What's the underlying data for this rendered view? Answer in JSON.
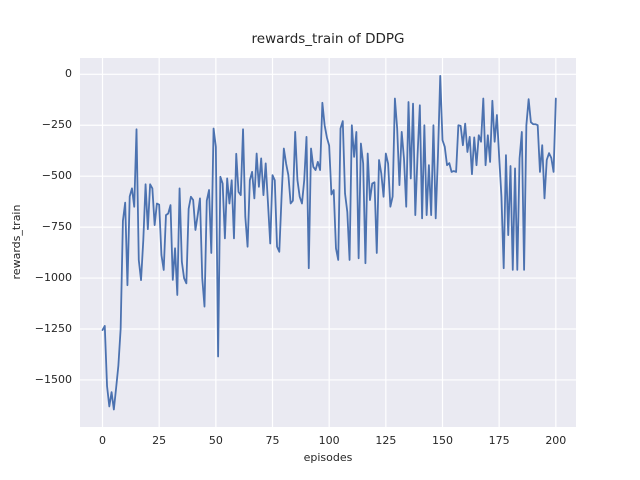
{
  "title": "rewards_train of DDPG",
  "xlabel": "episodes",
  "ylabel": "rewards_train",
  "colors": {
    "line": "#4c72b0",
    "plot_background": "#eaeaf2",
    "grid": "#ffffff",
    "figure_background": "#ffffff",
    "text": "#262626"
  },
  "chart_data": {
    "type": "line",
    "title": "rewards_train of DDPG",
    "xlabel": "episodes",
    "ylabel": "rewards_train",
    "legend": null,
    "grid": true,
    "x_ticks": [
      0,
      25,
      50,
      75,
      100,
      125,
      150,
      175,
      200
    ],
    "y_ticks": [
      0,
      -250,
      -500,
      -750,
      -1000,
      -1250,
      -1500
    ],
    "xlim": [
      -9.93,
      208.9
    ],
    "ylim": [
      -1731,
      80
    ],
    "x_start": 0,
    "x_step": 1,
    "values": [
      -1255,
      -1235,
      -1530,
      -1630,
      -1560,
      -1645,
      -1540,
      -1430,
      -1250,
      -720,
      -630,
      -1035,
      -600,
      -560,
      -650,
      -270,
      -911,
      -1010,
      -813,
      -540,
      -760,
      -540,
      -560,
      -740,
      -634,
      -640,
      -887,
      -960,
      -691,
      -683,
      -642,
      -1009,
      -854,
      -1083,
      -560,
      -920,
      -1001,
      -1026,
      -660,
      -601,
      -617,
      -764,
      -691,
      -609,
      -1000,
      -1140,
      -620,
      -568,
      -877,
      -266,
      -356,
      -1385,
      -503,
      -536,
      -805,
      -511,
      -634,
      -520,
      -805,
      -390,
      -577,
      -593,
      -270,
      -699,
      -846,
      -520,
      -479,
      -609,
      -389,
      -552,
      -413,
      -593,
      -437,
      -632,
      -830,
      -495,
      -520,
      -846,
      -871,
      -601,
      -364,
      -438,
      -495,
      -634,
      -620,
      -283,
      -519,
      -601,
      -634,
      -519,
      -307,
      -952,
      -364,
      -454,
      -470,
      -430,
      -470,
      -140,
      -250,
      -310,
      -350,
      -590,
      -568,
      -854,
      -911,
      -266,
      -230,
      -585,
      -675,
      -911,
      -250,
      -405,
      -283,
      -903,
      -340,
      -438,
      -927,
      -389,
      -617,
      -536,
      -530,
      -877,
      -421,
      -487,
      -601,
      -389,
      -438,
      -650,
      -600,
      -119,
      -266,
      -544,
      -283,
      -413,
      -650,
      -136,
      -511,
      -144,
      -691,
      -397,
      -152,
      -707,
      -250,
      -691,
      -446,
      -691,
      -250,
      -707,
      -397,
      -8,
      -323,
      -356,
      -446,
      -436,
      -479,
      -475,
      -479,
      -250,
      -253,
      -348,
      -242,
      -381,
      -307,
      -490,
      -310,
      -446,
      -299,
      -331,
      -119,
      -446,
      -299,
      -430,
      -130,
      -331,
      -200,
      -405,
      -600,
      -952,
      -397,
      -789,
      -450,
      -960,
      -462,
      -960,
      -413,
      -283,
      -960,
      -250,
      -122,
      -235,
      -245,
      -245,
      -250,
      -479,
      -348,
      -609,
      -420,
      -387,
      -410,
      -479,
      -119
    ]
  }
}
